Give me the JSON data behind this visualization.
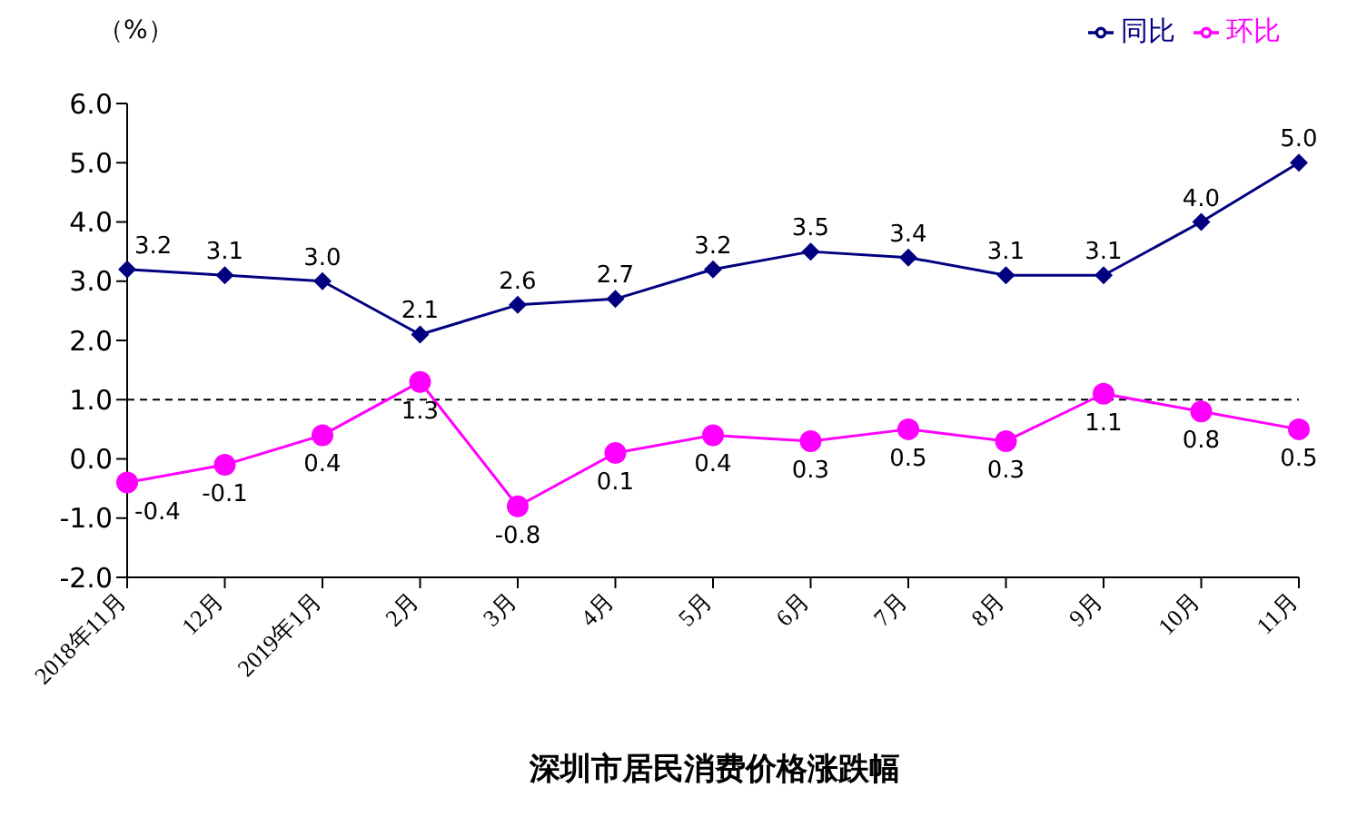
{
  "chart_data": {
    "type": "line",
    "title": "深圳市居民消费价格涨跌幅",
    "ylabel": "（%）",
    "categories": [
      "2018年11月",
      "12月",
      "2019年1月",
      "2月",
      "3月",
      "4月",
      "5月",
      "6月",
      "7月",
      "8月",
      "9月",
      "10月",
      "11月"
    ],
    "series": [
      {
        "name": "同比",
        "color": "#000080",
        "marker": "diamond",
        "values": [
          3.2,
          3.1,
          3.0,
          2.1,
          2.6,
          2.7,
          3.2,
          3.5,
          3.4,
          3.1,
          3.1,
          4.0,
          5.0
        ],
        "value_labels": [
          "3.2",
          "3.1",
          "3.0",
          "2.1",
          "2.6",
          "2.7",
          "3.2",
          "3.5",
          "3.4",
          "3.1",
          "3.1",
          "4.0",
          "5.0"
        ]
      },
      {
        "name": "环比",
        "color": "#ff00ff",
        "marker": "circle",
        "values": [
          -0.4,
          -0.1,
          0.4,
          1.3,
          -0.8,
          0.1,
          0.4,
          0.3,
          0.5,
          0.3,
          1.1,
          0.8,
          0.5
        ],
        "value_labels": [
          "-0.4",
          "-0.1",
          "0.4",
          "1.3",
          "-0.8",
          "0.1",
          "0.4",
          "0.3",
          "0.5",
          "0.3",
          "1.1",
          "0.8",
          "0.5"
        ]
      }
    ],
    "ylim": [
      -2,
      6
    ],
    "yticks": [
      {
        "value": -2,
        "label": "-2.0"
      },
      {
        "value": -1,
        "label": "-1.0"
      },
      {
        "value": 0,
        "label": "0.0"
      },
      {
        "value": 1,
        "label": "1.0"
      },
      {
        "value": 2,
        "label": "2.0"
      },
      {
        "value": 3,
        "label": "3.0"
      },
      {
        "value": 4,
        "label": "4.0"
      },
      {
        "value": 5,
        "label": "5.0"
      },
      {
        "value": 6,
        "label": "6.0"
      }
    ],
    "ref_lines": [
      {
        "axis": "y",
        "value": 1,
        "color": "#000000",
        "line_style": "dashed"
      }
    ],
    "grid": false,
    "legend": "top right",
    "line_style": "solid"
  }
}
